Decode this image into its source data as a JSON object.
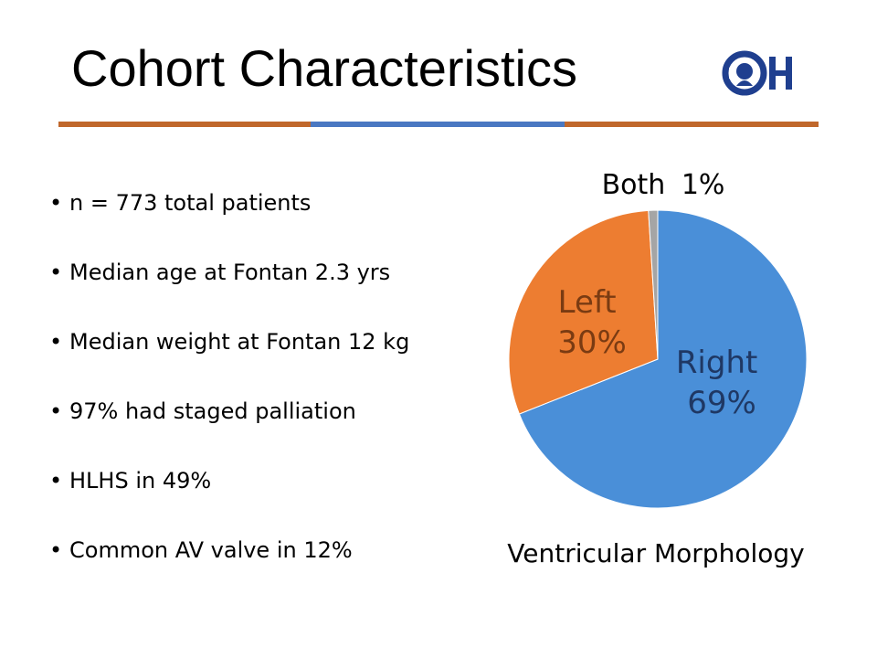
{
  "slide": {
    "title": "Cohort Characteristics",
    "logo_text": "CH"
  },
  "divider_colors": [
    "#C0672B",
    "#4A78C2",
    "#C0672B"
  ],
  "bullets": [
    "n = 773 total patients",
    "Median age at Fontan 2.3 yrs",
    "Median weight at Fontan 12 kg",
    "97% had staged palliation",
    "HLHS in 49%",
    "Common AV valve in 12%"
  ],
  "chart_data": {
    "type": "pie",
    "title": "Ventricular Morphology",
    "slices": [
      {
        "label": "Right",
        "value": 69,
        "display": "69%",
        "color": "#4A8FD8"
      },
      {
        "label": "Left",
        "value": 30,
        "display": "30%",
        "color": "#ED7D31"
      },
      {
        "label": "Both",
        "value": 1,
        "display": "1%",
        "color": "#A5A5A5"
      }
    ]
  }
}
